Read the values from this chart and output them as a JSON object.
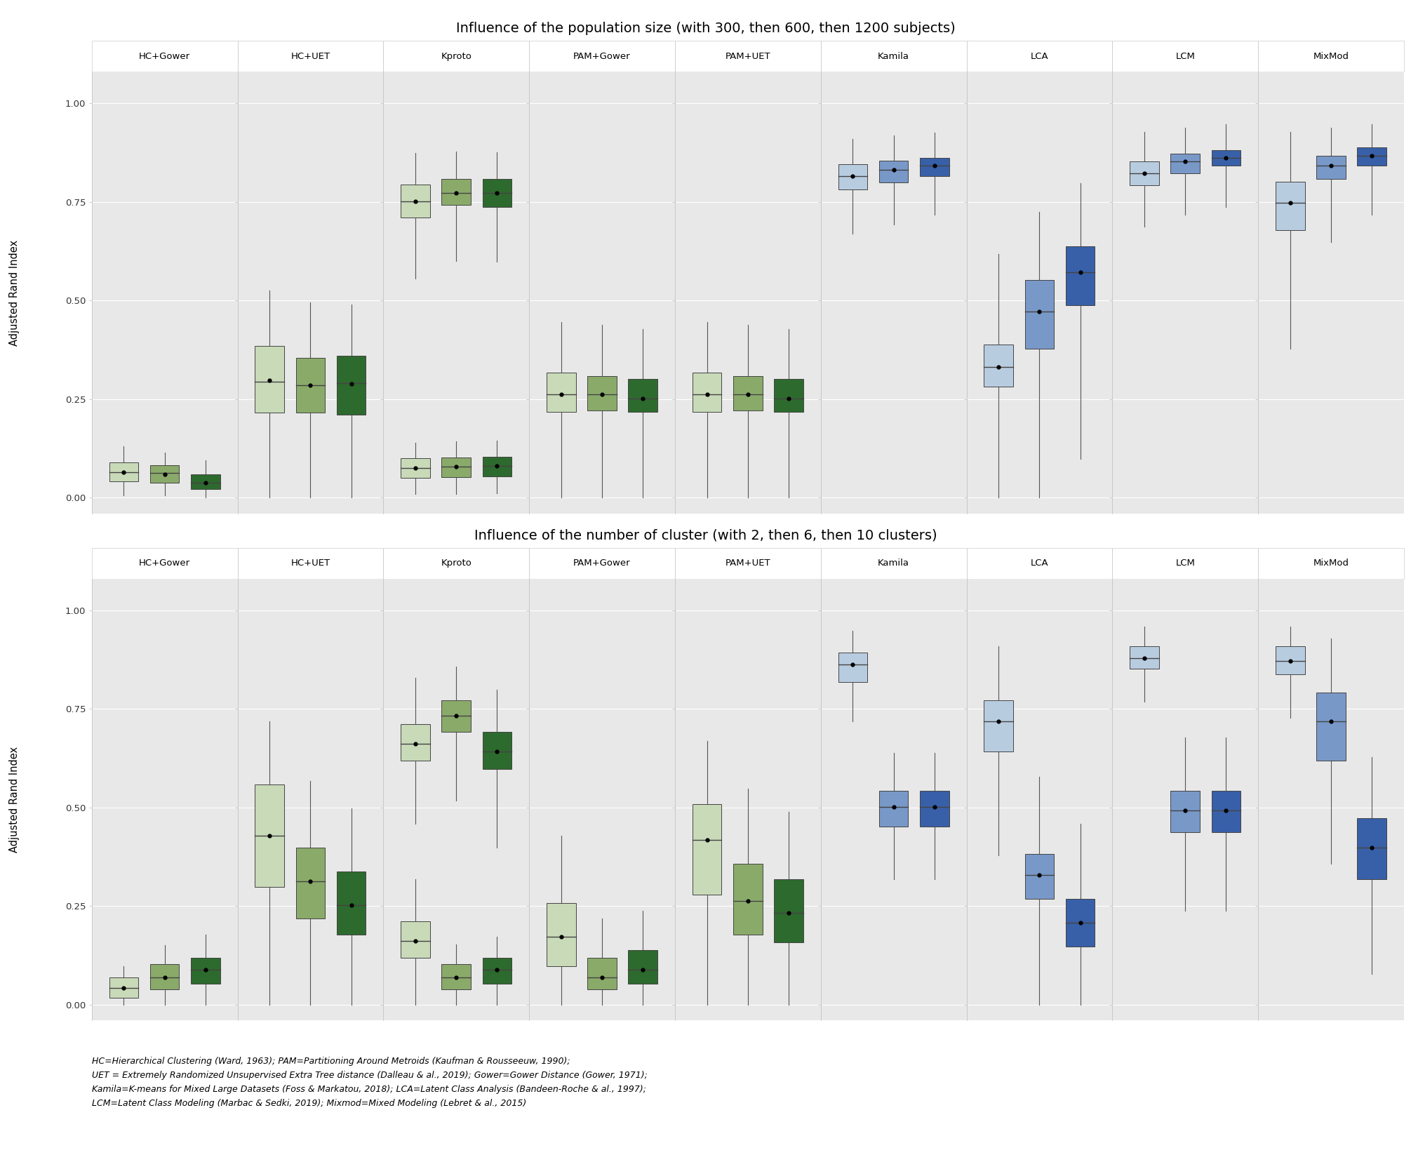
{
  "title1": "Influence of the population size (with 300, then 600, then 1200 subjects)",
  "title2": "Influence of the number of cluster (with 2, then 6, then 10 clusters)",
  "ylabel": "Adjusted Rand Index",
  "footnote": "HC=Hierarchical Clustering (Ward, 1963); PAM=Partitioning Around Metroids (Kaufman & Rousseeuw, 1990);\nUET = Extremely Randomized Unsupervised Extra Tree distance (Dalleau & al., 2019); Gower=Gower Distance (Gower, 1971);\nKamila=K-means for Mixed Large Datasets (Foss & Markatou, 2018); LCA=Latent Class Analysis (Bandeen-Roche & al., 1997);\nLCM=Latent Class Modeling (Marbac & Sedki, 2019); Mixmod=Mixed Modeling (Lebret & al., 2015)",
  "methods": [
    "HC+Gower",
    "HC+UET",
    "Kproto",
    "PAM+Gower",
    "PAM+UET",
    "Kamila",
    "LCA",
    "LCM",
    "MixMod"
  ],
  "plot1_data": {
    "HC+Gower": {
      "box1": {
        "q1": 0.042,
        "median": 0.065,
        "q3": 0.09,
        "whislo": 0.005,
        "whishi": 0.13,
        "mean": 0.065
      },
      "box2": {
        "q1": 0.038,
        "median": 0.062,
        "q3": 0.082,
        "whislo": 0.005,
        "whishi": 0.115,
        "mean": 0.06
      },
      "box3": {
        "q1": 0.022,
        "median": 0.038,
        "q3": 0.06,
        "whislo": 0.0,
        "whishi": 0.095,
        "mean": 0.038
      }
    },
    "HC+UET": {
      "box1": {
        "q1": 0.215,
        "median": 0.295,
        "q3": 0.385,
        "whislo": 0.0,
        "whishi": 0.525,
        "mean": 0.298
      },
      "box2": {
        "q1": 0.215,
        "median": 0.285,
        "q3": 0.355,
        "whislo": 0.0,
        "whishi": 0.495,
        "mean": 0.286
      },
      "box3": {
        "q1": 0.21,
        "median": 0.29,
        "q3": 0.36,
        "whislo": 0.0,
        "whishi": 0.49,
        "mean": 0.288
      }
    },
    "Kproto": {
      "box1": {
        "q1": 0.71,
        "median": 0.752,
        "q3": 0.795,
        "whislo": 0.555,
        "whishi": 0.875,
        "mean": 0.752
      },
      "box2": {
        "q1": 0.742,
        "median": 0.772,
        "q3": 0.808,
        "whislo": 0.6,
        "whishi": 0.878,
        "mean": 0.772
      },
      "box3": {
        "q1": 0.738,
        "median": 0.772,
        "q3": 0.808,
        "whislo": 0.598,
        "whishi": 0.876,
        "mean": 0.772
      },
      "box1b": {
        "q1": 0.05,
        "median": 0.075,
        "q3": 0.1,
        "whislo": 0.01,
        "whishi": 0.14,
        "mean": 0.075
      },
      "box2b": {
        "q1": 0.052,
        "median": 0.078,
        "q3": 0.102,
        "whislo": 0.01,
        "whishi": 0.142,
        "mean": 0.078
      },
      "box3b": {
        "q1": 0.054,
        "median": 0.08,
        "q3": 0.104,
        "whislo": 0.012,
        "whishi": 0.144,
        "mean": 0.08
      }
    },
    "PAM+Gower": {
      "box1": {
        "q1": 0.218,
        "median": 0.262,
        "q3": 0.318,
        "whislo": 0.0,
        "whishi": 0.445,
        "mean": 0.262
      },
      "box2": {
        "q1": 0.222,
        "median": 0.262,
        "q3": 0.308,
        "whislo": 0.0,
        "whishi": 0.438,
        "mean": 0.262
      },
      "box3": {
        "q1": 0.218,
        "median": 0.252,
        "q3": 0.302,
        "whislo": 0.0,
        "whishi": 0.428,
        "mean": 0.252
      }
    },
    "PAM+UET": {
      "box1": {
        "q1": 0.218,
        "median": 0.262,
        "q3": 0.318,
        "whislo": 0.0,
        "whishi": 0.445,
        "mean": 0.262
      },
      "box2": {
        "q1": 0.222,
        "median": 0.262,
        "q3": 0.308,
        "whislo": 0.0,
        "whishi": 0.438,
        "mean": 0.262
      },
      "box3": {
        "q1": 0.218,
        "median": 0.252,
        "q3": 0.302,
        "whislo": 0.0,
        "whishi": 0.428,
        "mean": 0.252
      }
    },
    "Kamila": {
      "box1": {
        "q1": 0.782,
        "median": 0.815,
        "q3": 0.845,
        "whislo": 0.67,
        "whishi": 0.91,
        "mean": 0.815
      },
      "box2": {
        "q1": 0.8,
        "median": 0.832,
        "q3": 0.855,
        "whislo": 0.692,
        "whishi": 0.918,
        "mean": 0.832
      },
      "box3": {
        "q1": 0.815,
        "median": 0.842,
        "q3": 0.862,
        "whislo": 0.718,
        "whishi": 0.925,
        "mean": 0.842
      }
    },
    "LCA": {
      "box1": {
        "q1": 0.282,
        "median": 0.332,
        "q3": 0.388,
        "whislo": 0.0,
        "whishi": 0.618,
        "mean": 0.332
      },
      "box2": {
        "q1": 0.378,
        "median": 0.472,
        "q3": 0.552,
        "whislo": 0.0,
        "whishi": 0.725,
        "mean": 0.472
      },
      "box3": {
        "q1": 0.488,
        "median": 0.572,
        "q3": 0.638,
        "whislo": 0.098,
        "whishi": 0.798,
        "mean": 0.572
      }
    },
    "LCM": {
      "box1": {
        "q1": 0.792,
        "median": 0.822,
        "q3": 0.852,
        "whislo": 0.688,
        "whishi": 0.928,
        "mean": 0.822
      },
      "box2": {
        "q1": 0.822,
        "median": 0.852,
        "q3": 0.872,
        "whislo": 0.718,
        "whishi": 0.938,
        "mean": 0.852
      },
      "box3": {
        "q1": 0.842,
        "median": 0.862,
        "q3": 0.882,
        "whislo": 0.738,
        "whishi": 0.948,
        "mean": 0.862
      }
    },
    "MixMod": {
      "box1": {
        "q1": 0.678,
        "median": 0.748,
        "q3": 0.802,
        "whislo": 0.378,
        "whishi": 0.928,
        "mean": 0.748
      },
      "box2": {
        "q1": 0.808,
        "median": 0.842,
        "q3": 0.868,
        "whislo": 0.648,
        "whishi": 0.938,
        "mean": 0.842
      },
      "box3": {
        "q1": 0.842,
        "median": 0.868,
        "q3": 0.888,
        "whislo": 0.718,
        "whishi": 0.948,
        "mean": 0.868
      }
    }
  },
  "plot2_data": {
    "HC+Gower": {
      "box1": {
        "q1": 0.018,
        "median": 0.042,
        "q3": 0.068,
        "whislo": 0.0,
        "whishi": 0.098,
        "mean": 0.042
      },
      "box2": {
        "q1": 0.038,
        "median": 0.068,
        "q3": 0.102,
        "whislo": 0.0,
        "whishi": 0.15,
        "mean": 0.068
      },
      "box3": {
        "q1": 0.052,
        "median": 0.088,
        "q3": 0.118,
        "whislo": 0.0,
        "whishi": 0.178,
        "mean": 0.088
      }
    },
    "HC+UET": {
      "box1": {
        "q1": 0.298,
        "median": 0.428,
        "q3": 0.558,
        "whislo": 0.0,
        "whishi": 0.718,
        "mean": 0.428
      },
      "box2": {
        "q1": 0.218,
        "median": 0.312,
        "q3": 0.398,
        "whislo": 0.0,
        "whishi": 0.568,
        "mean": 0.312
      },
      "box3": {
        "q1": 0.178,
        "median": 0.252,
        "q3": 0.338,
        "whislo": 0.0,
        "whishi": 0.498,
        "mean": 0.252
      }
    },
    "Kproto": {
      "box1": {
        "q1": 0.618,
        "median": 0.662,
        "q3": 0.712,
        "whislo": 0.458,
        "whishi": 0.828,
        "mean": 0.662
      },
      "box2": {
        "q1": 0.692,
        "median": 0.732,
        "q3": 0.772,
        "whislo": 0.518,
        "whishi": 0.858,
        "mean": 0.732
      },
      "box3": {
        "q1": 0.598,
        "median": 0.642,
        "q3": 0.692,
        "whislo": 0.398,
        "whishi": 0.798,
        "mean": 0.642
      },
      "box1b": {
        "q1": 0.118,
        "median": 0.162,
        "q3": 0.212,
        "whislo": 0.0,
        "whishi": 0.318,
        "mean": 0.162
      },
      "box2b": {
        "q1": 0.038,
        "median": 0.068,
        "q3": 0.102,
        "whislo": 0.0,
        "whishi": 0.152,
        "mean": 0.068
      },
      "box3b": {
        "q1": 0.052,
        "median": 0.088,
        "q3": 0.118,
        "whislo": 0.0,
        "whishi": 0.172,
        "mean": 0.088
      }
    },
    "PAM+Gower": {
      "box1": {
        "q1": 0.098,
        "median": 0.172,
        "q3": 0.258,
        "whislo": 0.0,
        "whishi": 0.428,
        "mean": 0.172
      },
      "box2": {
        "q1": 0.038,
        "median": 0.068,
        "q3": 0.118,
        "whislo": 0.0,
        "whishi": 0.218,
        "mean": 0.068
      },
      "box3": {
        "q1": 0.052,
        "median": 0.088,
        "q3": 0.138,
        "whislo": 0.0,
        "whishi": 0.238,
        "mean": 0.088
      }
    },
    "PAM+UET": {
      "box1": {
        "q1": 0.278,
        "median": 0.418,
        "q3": 0.508,
        "whislo": 0.0,
        "whishi": 0.668,
        "mean": 0.418
      },
      "box2": {
        "q1": 0.178,
        "median": 0.262,
        "q3": 0.358,
        "whislo": 0.0,
        "whishi": 0.548,
        "mean": 0.262
      },
      "box3": {
        "q1": 0.158,
        "median": 0.232,
        "q3": 0.318,
        "whislo": 0.0,
        "whishi": 0.488,
        "mean": 0.232
      }
    },
    "Kamila": {
      "box1": {
        "q1": 0.818,
        "median": 0.862,
        "q3": 0.892,
        "whislo": 0.718,
        "whishi": 0.948,
        "mean": 0.862
      },
      "box2": {
        "q1": 0.452,
        "median": 0.502,
        "q3": 0.542,
        "whislo": 0.318,
        "whishi": 0.638,
        "mean": 0.502
      },
      "box3": {
        "q1": 0.452,
        "median": 0.502,
        "q3": 0.542,
        "whislo": 0.318,
        "whishi": 0.638,
        "mean": 0.502
      }
    },
    "LCA": {
      "box1": {
        "q1": 0.642,
        "median": 0.718,
        "q3": 0.772,
        "whislo": 0.378,
        "whishi": 0.908,
        "mean": 0.718
      },
      "box2": {
        "q1": 0.268,
        "median": 0.328,
        "q3": 0.382,
        "whislo": 0.0,
        "whishi": 0.578,
        "mean": 0.328
      },
      "box3": {
        "q1": 0.148,
        "median": 0.208,
        "q3": 0.268,
        "whislo": 0.0,
        "whishi": 0.458,
        "mean": 0.208
      }
    },
    "LCM": {
      "box1": {
        "q1": 0.852,
        "median": 0.878,
        "q3": 0.908,
        "whislo": 0.768,
        "whishi": 0.958,
        "mean": 0.878
      },
      "box2": {
        "q1": 0.438,
        "median": 0.492,
        "q3": 0.542,
        "whislo": 0.238,
        "whishi": 0.678,
        "mean": 0.492
      },
      "box3": {
        "q1": 0.438,
        "median": 0.492,
        "q3": 0.542,
        "whislo": 0.238,
        "whishi": 0.678,
        "mean": 0.492
      }
    },
    "MixMod": {
      "box1": {
        "q1": 0.838,
        "median": 0.872,
        "q3": 0.908,
        "whislo": 0.728,
        "whishi": 0.958,
        "mean": 0.872
      },
      "box2": {
        "q1": 0.618,
        "median": 0.718,
        "q3": 0.792,
        "whislo": 0.358,
        "whishi": 0.928,
        "mean": 0.718
      },
      "box3": {
        "q1": 0.318,
        "median": 0.398,
        "q3": 0.472,
        "whislo": 0.078,
        "whishi": 0.628,
        "mean": 0.398
      }
    }
  },
  "box_colors": {
    "green1": "#c8dab8",
    "green2": "#8aaa6a",
    "green3": "#2d6a2d",
    "blue1": "#b8cce0",
    "blue2": "#7898c8",
    "blue3": "#3860a8"
  },
  "bg_color": "#e8e8e8",
  "header_bg": "#d8d8d8",
  "grid_color": "#ffffff",
  "whisker_color": "#555555",
  "box_edge_color": "#444444"
}
